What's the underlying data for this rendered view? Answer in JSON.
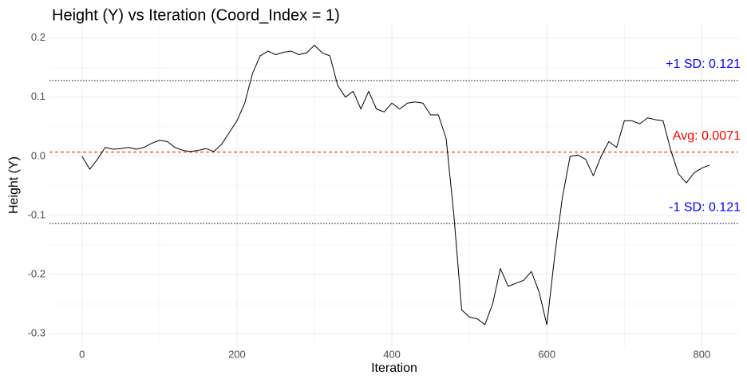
{
  "chart_data": {
    "type": "line",
    "title": "Height (Y) vs Iteration (Coord_Index = 1)",
    "x_label": "Iteration",
    "y_label": "Height (Y)",
    "x": [
      0,
      10,
      20,
      30,
      40,
      50,
      60,
      70,
      80,
      90,
      100,
      110,
      120,
      130,
      140,
      150,
      160,
      170,
      180,
      190,
      200,
      210,
      220,
      230,
      240,
      250,
      260,
      270,
      280,
      290,
      300,
      310,
      320,
      330,
      340,
      350,
      360,
      370,
      380,
      390,
      400,
      410,
      420,
      430,
      440,
      450,
      460,
      470,
      480,
      490,
      500,
      510,
      520,
      530,
      540,
      550,
      560,
      570,
      580,
      590,
      600,
      610,
      620,
      630,
      640,
      650,
      660,
      670,
      680,
      690,
      700,
      710,
      720,
      730,
      740,
      750,
      760,
      770,
      780,
      790,
      800,
      810
    ],
    "series": [
      {
        "color": "#000000",
        "values": [
          0.0,
          -0.022,
          -0.005,
          0.015,
          0.012,
          0.013,
          0.015,
          0.012,
          0.015,
          0.022,
          0.027,
          0.025,
          0.015,
          0.01,
          0.008,
          0.01,
          0.013,
          0.008,
          0.02,
          0.04,
          0.06,
          0.09,
          0.14,
          0.17,
          0.178,
          0.172,
          0.176,
          0.178,
          0.172,
          0.175,
          0.188,
          0.175,
          0.17,
          0.12,
          0.1,
          0.11,
          0.08,
          0.11,
          0.08,
          0.075,
          0.09,
          0.08,
          0.09,
          0.092,
          0.09,
          0.07,
          0.07,
          0.03,
          -0.1,
          -0.26,
          -0.272,
          -0.275,
          -0.285,
          -0.25,
          -0.19,
          -0.22,
          -0.215,
          -0.21,
          -0.195,
          -0.23,
          -0.285,
          -0.17,
          -0.07,
          0.0,
          0.002,
          -0.005,
          -0.033,
          0.0,
          0.025,
          0.015,
          0.06,
          0.06,
          0.055,
          0.065,
          0.062,
          0.06,
          0.01,
          -0.03,
          -0.045,
          -0.028,
          -0.02,
          -0.015
        ]
      }
    ],
    "xlim": [
      -42,
      847
    ],
    "xticks": [
      0,
      200,
      400,
      600,
      800
    ],
    "x_minor_ticks": [
      100,
      300,
      500,
      700
    ],
    "ylim": [
      -0.323,
      0.224
    ],
    "yticks": [
      {
        "value": -0.3,
        "label": "-0.3"
      },
      {
        "value": -0.2,
        "label": "-0.2"
      },
      {
        "value": -0.1,
        "label": "-0.1"
      },
      {
        "value": 0,
        "label": "0.0"
      },
      {
        "value": 0.1,
        "label": "0.1"
      },
      {
        "value": 0.2,
        "label": "0.2"
      }
    ],
    "y_minor_ticks": [
      -0.25,
      -0.15,
      -0.05,
      0.05,
      0.15
    ],
    "grid": true,
    "reference_lines": [
      {
        "value": 0.1281,
        "label": "+1 SD: 0.121",
        "color": "#0000ff",
        "style": "dotted",
        "line_color": "#000000"
      },
      {
        "value": 0.0071,
        "label": "Avg: 0.0071",
        "color": "#ff0000",
        "style": "dashed",
        "line_color": "#ff0000"
      },
      {
        "value": -0.1139,
        "label": "-1 SD: 0.121",
        "color": "#0000ff",
        "style": "dotted",
        "line_color": "#000000"
      }
    ]
  }
}
